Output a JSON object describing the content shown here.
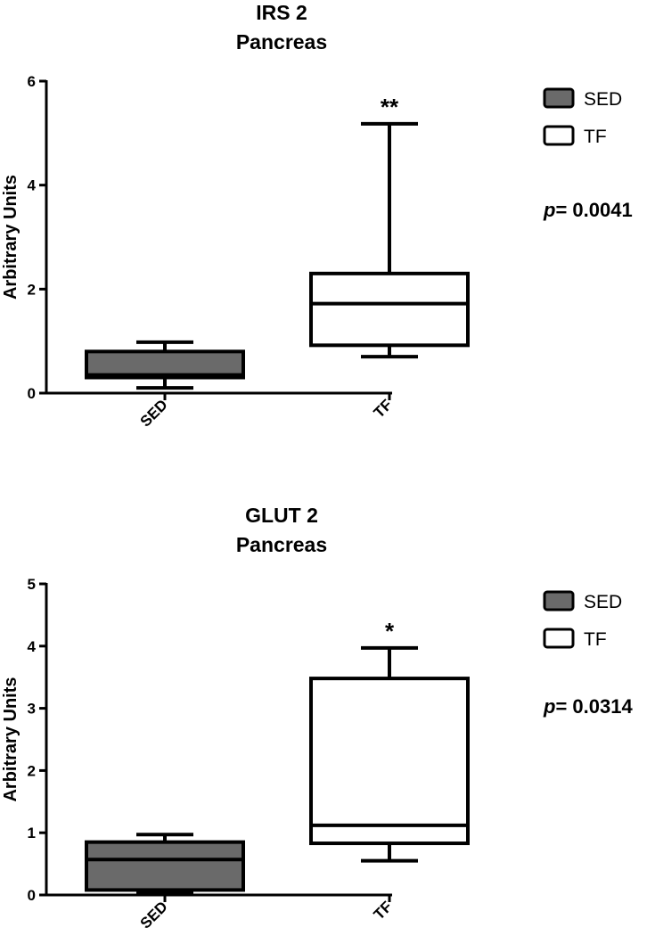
{
  "chart_data": [
    {
      "type": "box",
      "title": [
        "IRS 2",
        "Pancreas"
      ],
      "ylabel": "Arbitrary Units",
      "ylim": [
        0,
        6
      ],
      "yticks": [
        "0",
        "2",
        "4",
        "6"
      ],
      "categories": [
        "SED",
        "TF"
      ],
      "legend": [
        {
          "label": "SED",
          "color": "#6a6a6a"
        },
        {
          "label": "TF",
          "color": "#ffffff"
        }
      ],
      "p_prefix": "p",
      "p_rest": "= 0.0041",
      "significance": "**",
      "boxes": [
        {
          "category": "SED",
          "min": 0.1,
          "q1": 0.3,
          "median": 0.35,
          "q3": 0.8,
          "max": 0.98,
          "color": "#6a6a6a"
        },
        {
          "category": "TF",
          "min": 0.7,
          "q1": 0.92,
          "median": 1.72,
          "q3": 2.3,
          "max": 5.18,
          "color": "#ffffff"
        }
      ]
    },
    {
      "type": "box",
      "title": [
        "GLUT 2",
        "Pancreas"
      ],
      "ylabel": "Arbitrary Units",
      "ylim": [
        0,
        5
      ],
      "yticks": [
        "0",
        "1",
        "2",
        "3",
        "4",
        "5"
      ],
      "categories": [
        "SED",
        "TF"
      ],
      "legend": [
        {
          "label": "SED",
          "color": "#6a6a6a"
        },
        {
          "label": "TF",
          "color": "#ffffff"
        }
      ],
      "p_prefix": "p",
      "p_rest": "= 0.0314",
      "significance": "*",
      "boxes": [
        {
          "category": "SED",
          "min": 0.05,
          "q1": 0.08,
          "median": 0.57,
          "q3": 0.85,
          "max": 0.97,
          "color": "#6a6a6a"
        },
        {
          "category": "TF",
          "min": 0.55,
          "q1": 0.83,
          "median": 1.12,
          "q3": 3.48,
          "max": 3.97,
          "color": "#ffffff"
        }
      ]
    }
  ]
}
